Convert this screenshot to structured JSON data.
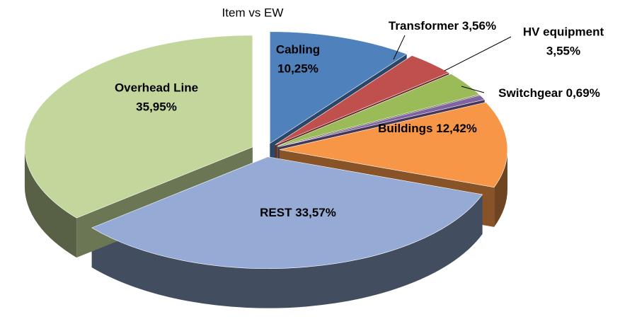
{
  "chart_data": {
    "type": "pie3d",
    "title": "Item vs EW",
    "categories": [
      "Cabling",
      "Transformer",
      "HV equipment",
      "Switchgear",
      "Buildings",
      "REST",
      "Overhead Line"
    ],
    "values": [
      10.25,
      3.56,
      3.55,
      0.69,
      12.42,
      33.57,
      35.95
    ],
    "value_labels": [
      "10,25%",
      "3,56%",
      "3,55%",
      "0,69%",
      "12,42%",
      "33,57%",
      "35,95%"
    ],
    "colors": [
      "#4f81bd",
      "#c0504d",
      "#9bbb59",
      "#8064a2",
      "#f79646",
      "#95abd6",
      "#c3d69b"
    ]
  }
}
